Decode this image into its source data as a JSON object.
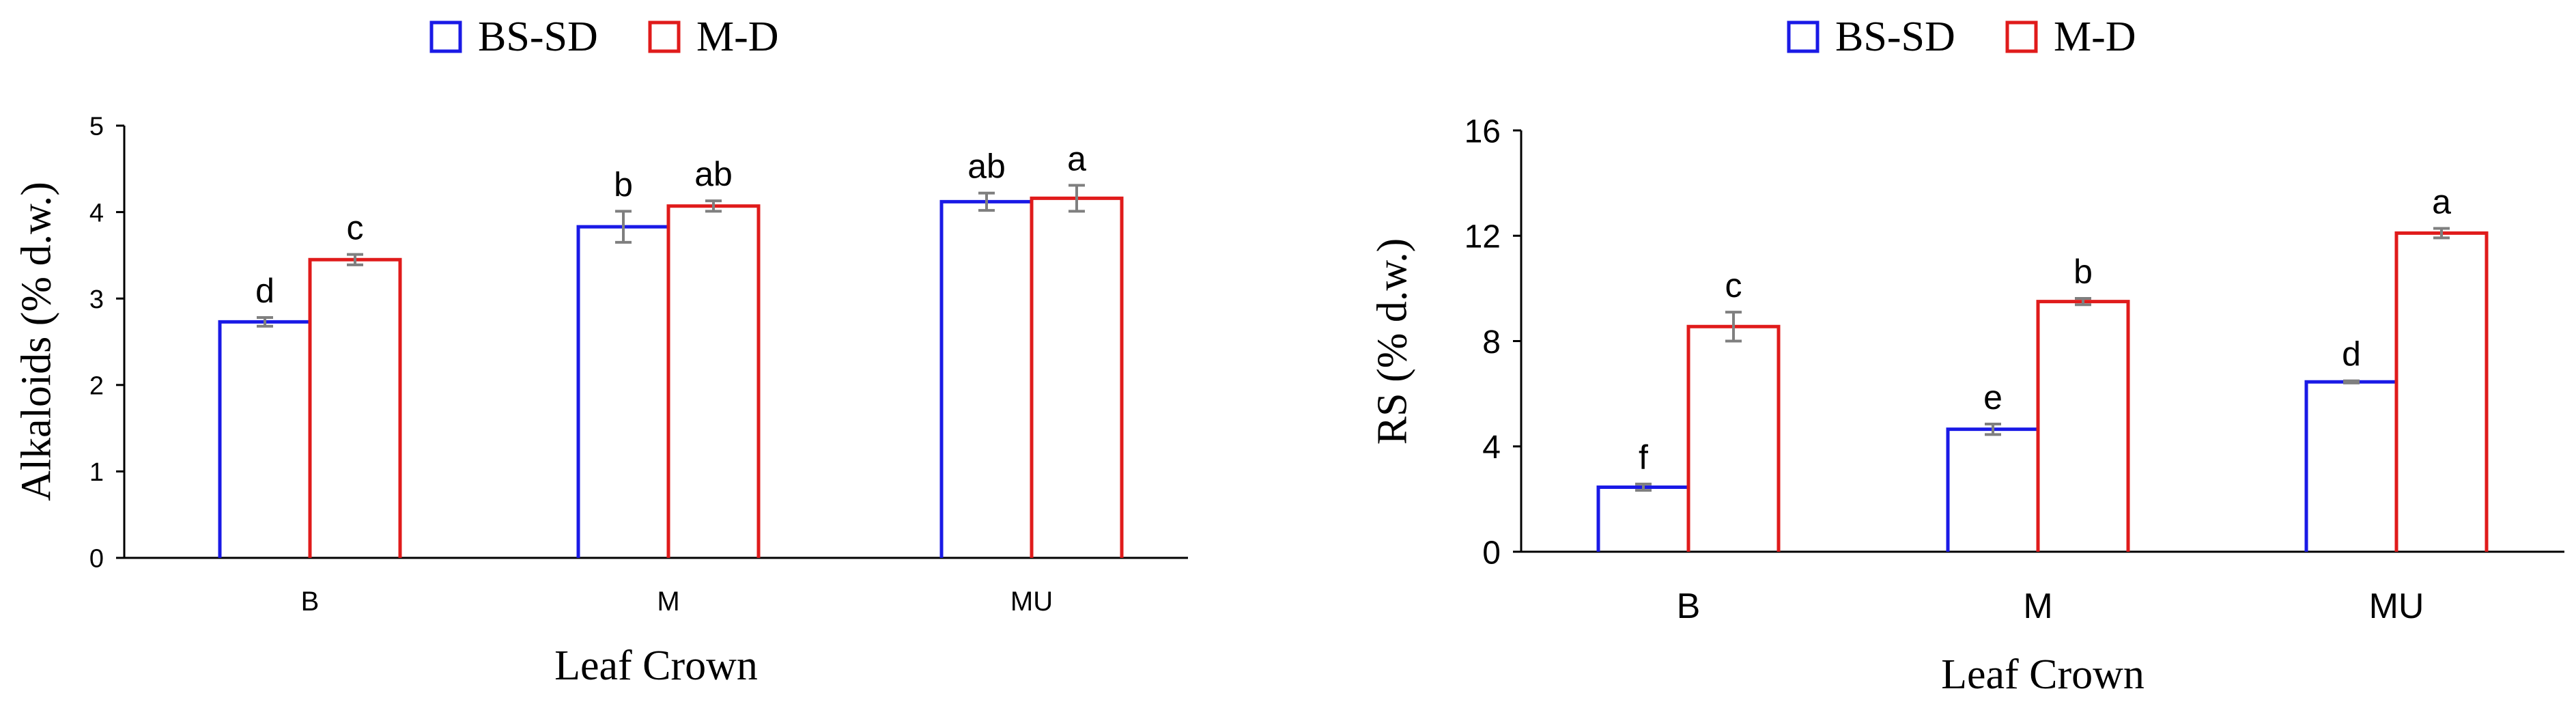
{
  "colors": {
    "bs_sd": "#1a1ae6",
    "m_d": "#e01b1b",
    "error_bar": "#7f7f7f",
    "axis": "#000000"
  },
  "chart_data": [
    {
      "type": "bar",
      "title": "",
      "xlabel": "Leaf Crown",
      "ylabel": "Alkaloids (% d.w.)",
      "ylim": [
        0,
        5
      ],
      "yticks": [
        "0",
        "1",
        "2",
        "3",
        "4",
        "5"
      ],
      "categories": [
        "B",
        "M",
        "MU"
      ],
      "legend_position": "top",
      "grid": false,
      "series": [
        {
          "name": "BS-SD",
          "color": "#1a1ae6",
          "values": [
            2.73,
            3.83,
            4.12
          ],
          "errors": [
            0.05,
            0.18,
            0.1
          ],
          "letters": [
            "d",
            "b",
            "ab"
          ]
        },
        {
          "name": "M-D",
          "color": "#e01b1b",
          "values": [
            3.45,
            4.07,
            4.16
          ],
          "errors": [
            0.06,
            0.06,
            0.15
          ],
          "letters": [
            "c",
            "ab",
            "a"
          ]
        }
      ]
    },
    {
      "type": "bar",
      "title": "",
      "xlabel": "Leaf Crown",
      "ylabel": "RS (% d.w.)",
      "ylim": [
        0,
        16
      ],
      "yticks": [
        "0",
        "4",
        "8",
        "12",
        "16"
      ],
      "categories": [
        "B",
        "M",
        "MU"
      ],
      "legend_position": "top",
      "grid": false,
      "series": [
        {
          "name": "BS-SD",
          "color": "#1a1ae6",
          "values": [
            2.45,
            4.65,
            6.45
          ],
          "errors": [
            0.12,
            0.2,
            0.04
          ],
          "letters": [
            "f",
            "e",
            "d"
          ]
        },
        {
          "name": "M-D",
          "color": "#e01b1b",
          "values": [
            8.55,
            9.5,
            12.1
          ],
          "errors": [
            0.55,
            0.12,
            0.18
          ],
          "letters": [
            "c",
            "b",
            "a"
          ]
        }
      ]
    }
  ]
}
